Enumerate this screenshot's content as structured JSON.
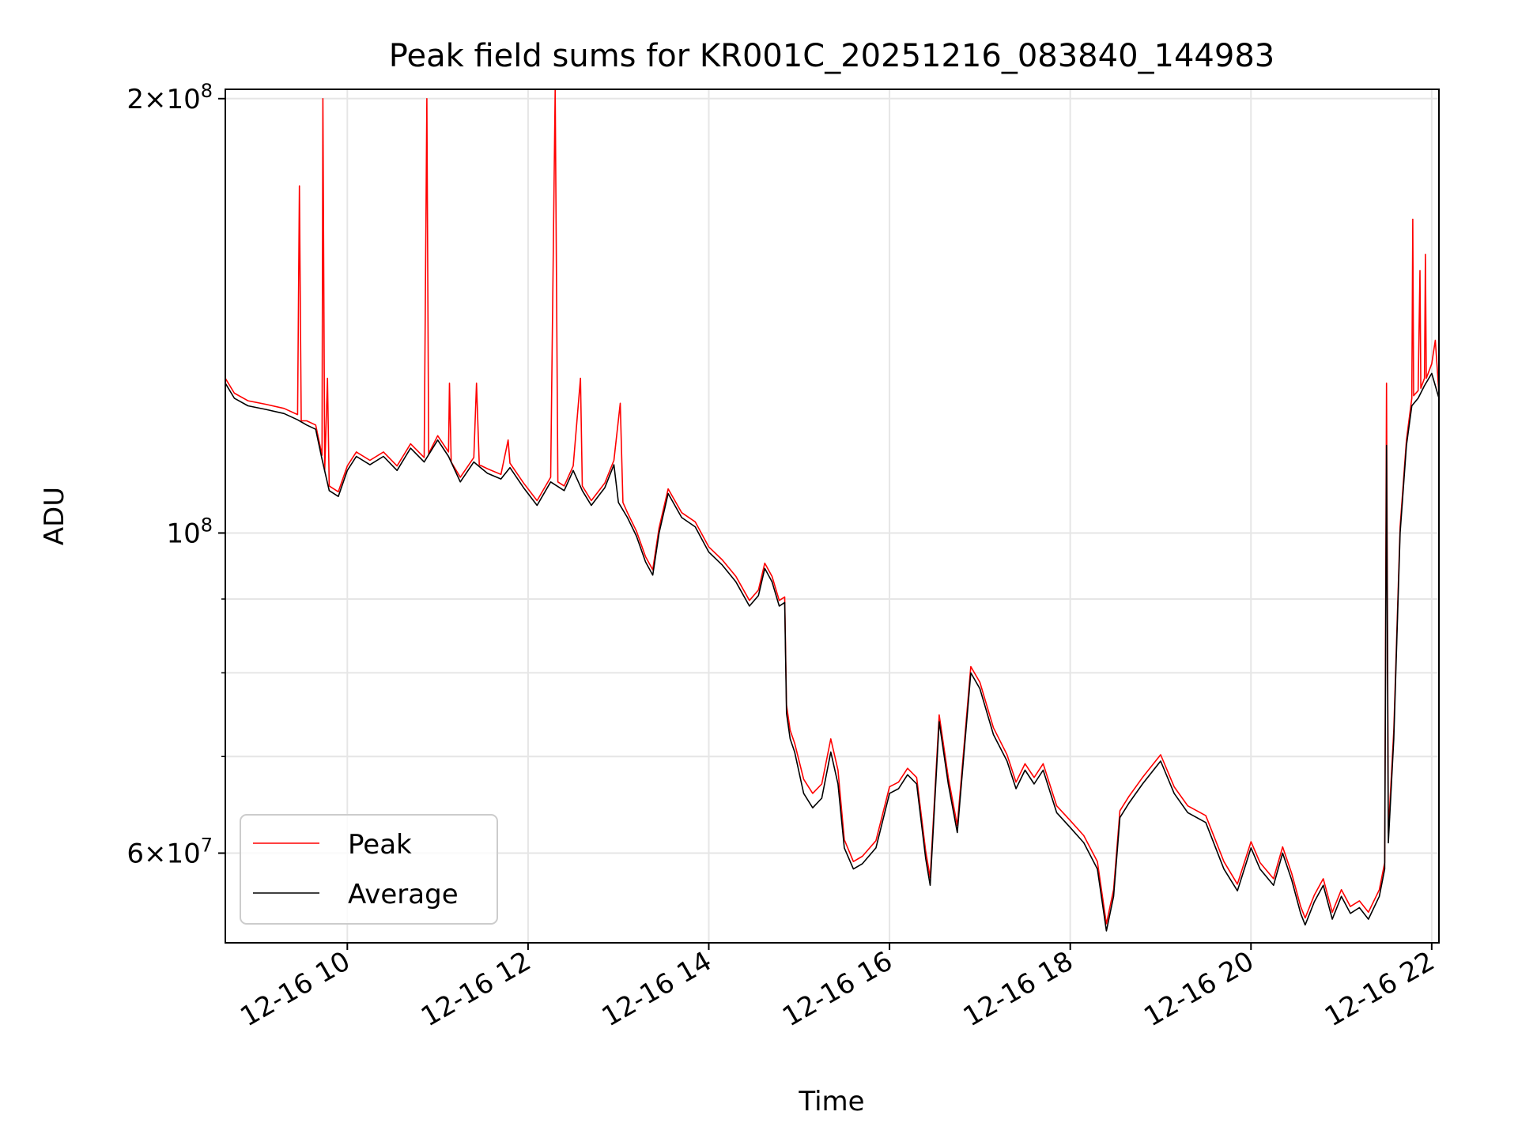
{
  "chart_data": {
    "type": "line",
    "title": "Peak field sums for KR001C_20251216_083840_144983",
    "xlabel": "Time",
    "ylabel": "ADU",
    "yscale": "log",
    "xlim_hours": [
      8.65,
      22.08
    ],
    "ylim": [
      52000000,
      203000000
    ],
    "x_ticks": [
      {
        "hour": 10,
        "label": "12-16 10"
      },
      {
        "hour": 12,
        "label": "12-16 12"
      },
      {
        "hour": 14,
        "label": "12-16 14"
      },
      {
        "hour": 16,
        "label": "12-16 16"
      },
      {
        "hour": 18,
        "label": "12-16 18"
      },
      {
        "hour": 20,
        "label": "12-16 20"
      },
      {
        "hour": 22,
        "label": "12-16 22"
      }
    ],
    "y_major_ticks": [
      {
        "value": 60000000,
        "label_mantissa": "6",
        "label_x": "×10",
        "label_exp": "7"
      },
      {
        "value": 100000000,
        "label_mantissa": "",
        "label_x": "10",
        "label_exp": "8"
      },
      {
        "value": 200000000,
        "label_mantissa": "2",
        "label_x": "×10",
        "label_exp": "8"
      }
    ],
    "y_minor_ticks": [
      70000000,
      80000000,
      90000000
    ],
    "grid": true,
    "legend_position": "lower-left",
    "legend": [
      "Peak",
      "Average"
    ],
    "series": [
      {
        "name": "Average",
        "color": "#000000",
        "points": [
          [
            8.65,
            127000000.0
          ],
          [
            8.75,
            124000000.0
          ],
          [
            8.9,
            122500000.0
          ],
          [
            9.1,
            121800000.0
          ],
          [
            9.3,
            121000000.0
          ],
          [
            9.45,
            119800000.0
          ],
          [
            9.55,
            118800000.0
          ],
          [
            9.65,
            118000000.0
          ],
          [
            9.72,
            112500000.0
          ],
          [
            9.8,
            107000000.0
          ],
          [
            9.9,
            106000000.0
          ],
          [
            10.0,
            110500000.0
          ],
          [
            10.1,
            113000000.0
          ],
          [
            10.25,
            111500000.0
          ],
          [
            10.4,
            113000000.0
          ],
          [
            10.55,
            110500000.0
          ],
          [
            10.7,
            114500000.0
          ],
          [
            10.85,
            112000000.0
          ],
          [
            11.0,
            116000000.0
          ],
          [
            11.12,
            113000000.0
          ],
          [
            11.25,
            108500000.0
          ],
          [
            11.4,
            112000000.0
          ],
          [
            11.55,
            110000000.0
          ],
          [
            11.7,
            109000000.0
          ],
          [
            11.8,
            111000000.0
          ],
          [
            11.95,
            107500000.0
          ],
          [
            12.1,
            104500000.0
          ],
          [
            12.25,
            108500000.0
          ],
          [
            12.4,
            107000000.0
          ],
          [
            12.5,
            110500000.0
          ],
          [
            12.6,
            107000000.0
          ],
          [
            12.7,
            104500000.0
          ],
          [
            12.85,
            107500000.0
          ],
          [
            12.95,
            111500000.0
          ],
          [
            13.0,
            105000000.0
          ],
          [
            13.1,
            102500000.0
          ],
          [
            13.2,
            99500000.0
          ],
          [
            13.3,
            95500000.0
          ],
          [
            13.38,
            93500000.0
          ],
          [
            13.45,
            100000000.0
          ],
          [
            13.55,
            106500000.0
          ],
          [
            13.7,
            102500000.0
          ],
          [
            13.85,
            101000000.0
          ],
          [
            14.0,
            97000000.0
          ],
          [
            14.15,
            95000000.0
          ],
          [
            14.3,
            92500000.0
          ],
          [
            14.45,
            89000000.0
          ],
          [
            14.55,
            90500000.0
          ],
          [
            14.62,
            94500000.0
          ],
          [
            14.7,
            92500000.0
          ],
          [
            14.78,
            89000000.0
          ],
          [
            14.84,
            89500000.0
          ],
          [
            14.86,
            75000000.0
          ],
          [
            14.9,
            72000000.0
          ],
          [
            14.95,
            70500000.0
          ],
          [
            15.05,
            66000000.0
          ],
          [
            15.15,
            64500000.0
          ],
          [
            15.25,
            65500000.0
          ],
          [
            15.35,
            70500000.0
          ],
          [
            15.43,
            67000000.0
          ],
          [
            15.5,
            60500000.0
          ],
          [
            15.6,
            58500000.0
          ],
          [
            15.7,
            59000000.0
          ],
          [
            15.85,
            60500000.0
          ],
          [
            16.0,
            66000000.0
          ],
          [
            16.1,
            66500000.0
          ],
          [
            16.2,
            68000000.0
          ],
          [
            16.3,
            67000000.0
          ],
          [
            16.4,
            59500000.0
          ],
          [
            16.45,
            57000000.0
          ],
          [
            16.55,
            74000000.0
          ],
          [
            16.65,
            67000000.0
          ],
          [
            16.75,
            62000000.0
          ],
          [
            16.9,
            80000000.0
          ],
          [
            17.0,
            78000000.0
          ],
          [
            17.15,
            72500000.0
          ],
          [
            17.3,
            69500000.0
          ],
          [
            17.4,
            66500000.0
          ],
          [
            17.5,
            68500000.0
          ],
          [
            17.6,
            67000000.0
          ],
          [
            17.7,
            68500000.0
          ],
          [
            17.85,
            64000000.0
          ],
          [
            18.0,
            62500000.0
          ],
          [
            18.15,
            61000000.0
          ],
          [
            18.3,
            58500000.0
          ],
          [
            18.4,
            53000000.0
          ],
          [
            18.48,
            56000000.0
          ],
          [
            18.55,
            63500000.0
          ],
          [
            18.65,
            65000000.0
          ],
          [
            18.8,
            67000000.0
          ],
          [
            19.0,
            69500000.0
          ],
          [
            19.15,
            66000000.0
          ],
          [
            19.3,
            64000000.0
          ],
          [
            19.5,
            63000000.0
          ],
          [
            19.7,
            58500000.0
          ],
          [
            19.85,
            56500000.0
          ],
          [
            20.0,
            60500000.0
          ],
          [
            20.1,
            58500000.0
          ],
          [
            20.25,
            57000000.0
          ],
          [
            20.35,
            60000000.0
          ],
          [
            20.45,
            57500000.0
          ],
          [
            20.55,
            54500000.0
          ],
          [
            20.6,
            53500000.0
          ],
          [
            20.7,
            55500000.0
          ],
          [
            20.8,
            57000000.0
          ],
          [
            20.9,
            54000000.0
          ],
          [
            21.0,
            56000000.0
          ],
          [
            21.1,
            54500000.0
          ],
          [
            21.2,
            55000000.0
          ],
          [
            21.3,
            54000000.0
          ],
          [
            21.42,
            56000000.0
          ],
          [
            21.48,
            58500000.0
          ],
          [
            21.5,
            115000000.0
          ],
          [
            21.52,
            61000000.0
          ],
          [
            21.58,
            72000000.0
          ],
          [
            21.65,
            100000000.0
          ],
          [
            21.72,
            115000000.0
          ],
          [
            21.78,
            122500000.0
          ],
          [
            21.85,
            124000000.0
          ],
          [
            21.92,
            126500000.0
          ],
          [
            22.0,
            129000000.0
          ],
          [
            22.08,
            124000000.0
          ]
        ]
      },
      {
        "name": "Peak",
        "color": "#ff0000",
        "points": [
          [
            8.65,
            128000000.0
          ],
          [
            8.75,
            125000000.0
          ],
          [
            8.9,
            123500000.0
          ],
          [
            9.1,
            122800000.0
          ],
          [
            9.3,
            122000000.0
          ],
          [
            9.45,
            120800000.0
          ],
          [
            9.47,
            174000000.0
          ],
          [
            9.49,
            119600000.0
          ],
          [
            9.55,
            119600000.0
          ],
          [
            9.65,
            118800000.0
          ],
          [
            9.72,
            113200000.0
          ],
          [
            9.73,
            200000000.0
          ],
          [
            9.75,
            110500000.0
          ],
          [
            9.78,
            128000000.0
          ],
          [
            9.8,
            107800000.0
          ],
          [
            9.9,
            106800000.0
          ],
          [
            10.0,
            111300000.0
          ],
          [
            10.1,
            113800000.0
          ],
          [
            10.25,
            112300000.0
          ],
          [
            10.4,
            113800000.0
          ],
          [
            10.55,
            111300000.0
          ],
          [
            10.7,
            115300000.0
          ],
          [
            10.85,
            112800000.0
          ],
          [
            10.88,
            200000000.0
          ],
          [
            10.9,
            113500000.0
          ],
          [
            11.0,
            116800000.0
          ],
          [
            11.12,
            113800000.0
          ],
          [
            11.13,
            127000000.0
          ],
          [
            11.15,
            112000000.0
          ],
          [
            11.25,
            109300000.0
          ],
          [
            11.4,
            112800000.0
          ],
          [
            11.43,
            127000000.0
          ],
          [
            11.46,
            111500000.0
          ],
          [
            11.55,
            110800000.0
          ],
          [
            11.7,
            109800000.0
          ],
          [
            11.78,
            116000000.0
          ],
          [
            11.8,
            111800000.0
          ],
          [
            11.95,
            108300000.0
          ],
          [
            12.1,
            105300000.0
          ],
          [
            12.25,
            109300000.0
          ],
          [
            12.3,
            203000000.0
          ],
          [
            12.33,
            108500000.0
          ],
          [
            12.4,
            107800000.0
          ],
          [
            12.5,
            111300000.0
          ],
          [
            12.58,
            128000000.0
          ],
          [
            12.6,
            107800000.0
          ],
          [
            12.7,
            105300000.0
          ],
          [
            12.85,
            108300000.0
          ],
          [
            12.95,
            112300000.0
          ],
          [
            13.02,
            123000000.0
          ],
          [
            13.05,
            105000000.0
          ],
          [
            13.1,
            103300000.0
          ],
          [
            13.2,
            100300000.0
          ],
          [
            13.3,
            96300000.0
          ],
          [
            13.38,
            94300000.0
          ],
          [
            13.45,
            100800000.0
          ],
          [
            13.55,
            107300000.0
          ],
          [
            13.7,
            103300000.0
          ],
          [
            13.85,
            101800000.0
          ],
          [
            14.0,
            97800000.0
          ],
          [
            14.15,
            95800000.0
          ],
          [
            14.3,
            93300000.0
          ],
          [
            14.45,
            89800000.0
          ],
          [
            14.55,
            91300000.0
          ],
          [
            14.62,
            95300000.0
          ],
          [
            14.7,
            93300000.0
          ],
          [
            14.78,
            89800000.0
          ],
          [
            14.84,
            90300000.0
          ],
          [
            14.86,
            76000000.0
          ],
          [
            14.9,
            73000000.0
          ],
          [
            14.95,
            71500000.0
          ],
          [
            15.05,
            67500000.0
          ],
          [
            15.15,
            66000000.0
          ],
          [
            15.25,
            67000000.0
          ],
          [
            15.35,
            72000000.0
          ],
          [
            15.43,
            68500000.0
          ],
          [
            15.5,
            61300000.0
          ],
          [
            15.6,
            59200000.0
          ],
          [
            15.7,
            59700000.0
          ],
          [
            15.85,
            61200000.0
          ],
          [
            16.0,
            66700000.0
          ],
          [
            16.1,
            67200000.0
          ],
          [
            16.2,
            68700000.0
          ],
          [
            16.3,
            67700000.0
          ],
          [
            16.4,
            60200000.0
          ],
          [
            16.45,
            57700000.0
          ],
          [
            16.55,
            74800000.0
          ],
          [
            16.65,
            67700000.0
          ],
          [
            16.75,
            62700000.0
          ],
          [
            16.9,
            80800000.0
          ],
          [
            17.0,
            78800000.0
          ],
          [
            17.15,
            73300000.0
          ],
          [
            17.3,
            70200000.0
          ],
          [
            17.4,
            67200000.0
          ],
          [
            17.5,
            69200000.0
          ],
          [
            17.6,
            67700000.0
          ],
          [
            17.7,
            69200000.0
          ],
          [
            17.85,
            64700000.0
          ],
          [
            18.0,
            63200000.0
          ],
          [
            18.15,
            61700000.0
          ],
          [
            18.3,
            59200000.0
          ],
          [
            18.4,
            53600000.0
          ],
          [
            18.48,
            56600000.0
          ],
          [
            18.55,
            64200000.0
          ],
          [
            18.65,
            65700000.0
          ],
          [
            18.8,
            67700000.0
          ],
          [
            19.0,
            70200000.0
          ],
          [
            19.15,
            66700000.0
          ],
          [
            19.3,
            64700000.0
          ],
          [
            19.5,
            63700000.0
          ],
          [
            19.7,
            59200000.0
          ],
          [
            19.85,
            57100000.0
          ],
          [
            20.0,
            61100000.0
          ],
          [
            20.1,
            59100000.0
          ],
          [
            20.25,
            57600000.0
          ],
          [
            20.35,
            60600000.0
          ],
          [
            20.45,
            58100000.0
          ],
          [
            20.55,
            55100000.0
          ],
          [
            20.6,
            54100000.0
          ],
          [
            20.7,
            56100000.0
          ],
          [
            20.8,
            57600000.0
          ],
          [
            20.9,
            54600000.0
          ],
          [
            21.0,
            56600000.0
          ],
          [
            21.1,
            55100000.0
          ],
          [
            21.2,
            55600000.0
          ],
          [
            21.3,
            54600000.0
          ],
          [
            21.42,
            56600000.0
          ],
          [
            21.48,
            59100000.0
          ],
          [
            21.5,
            127000000.0
          ],
          [
            21.52,
            62000000.0
          ],
          [
            21.58,
            73000000.0
          ],
          [
            21.65,
            101000000.0
          ],
          [
            21.72,
            116000000.0
          ],
          [
            21.78,
            124000000.0
          ],
          [
            21.79,
            165000000.0
          ],
          [
            21.8,
            124500000.0
          ],
          [
            21.85,
            125500000.0
          ],
          [
            21.87,
            152000000.0
          ],
          [
            21.88,
            126000000.0
          ],
          [
            21.92,
            128000000.0
          ],
          [
            21.93,
            156000000.0
          ],
          [
            21.94,
            128000000.0
          ],
          [
            22.0,
            131000000.0
          ],
          [
            22.04,
            136000000.0
          ],
          [
            22.08,
            125000000.0
          ]
        ]
      }
    ]
  }
}
